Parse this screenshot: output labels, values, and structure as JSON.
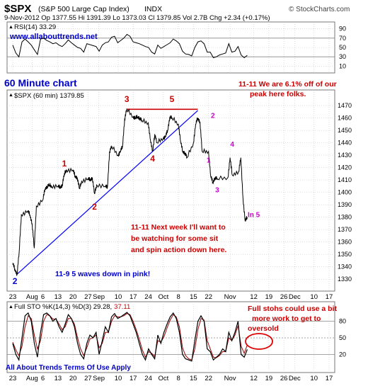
{
  "header": {
    "symbol": "$SPX",
    "name": "(S&P 500 Large Cap Index)",
    "exchange": "INDX",
    "source": "© StockCharts.com",
    "line2": "9-Nov-2012   Op 1377.55   Hi 1391.39   Lo 1373.03   Cl 1379.85   Vol 2.7B   Chg +2.34 (+0.17%)",
    "up_triangle": "▲"
  },
  "rsi_panel": {
    "label": "RSI(14) 33.29",
    "ticks": [
      "90",
      "70",
      "50",
      "30",
      "10"
    ],
    "watermark": "www.allabouttrends.net"
  },
  "price_panel": {
    "label": "$SPX (60 min) 1379.85",
    "outer_title": "60 Minute chart",
    "ticks": [
      "1470",
      "1460",
      "1450",
      "1440",
      "1430",
      "1420",
      "1410",
      "1400",
      "1390",
      "1380",
      "1370",
      "1360",
      "1350",
      "1340",
      "1330"
    ],
    "x_labels": [
      "23",
      "Aug",
      "6",
      "13",
      "20",
      "27",
      "Sep",
      "10",
      "17",
      "24",
      "Oct",
      "8",
      "15",
      "22",
      "Nov",
      "12",
      "19",
      "26",
      "Dec",
      "10",
      "17"
    ],
    "wave_labels": [
      {
        "text": "1",
        "color": "#cc0000"
      },
      {
        "text": "2",
        "color": "#cc0000"
      },
      {
        "text": "3",
        "color": "#cc0000"
      },
      {
        "text": "4",
        "color": "#cc0000"
      },
      {
        "text": "5",
        "color": "#cc0000"
      },
      {
        "text": "1",
        "color": "#cc00cc"
      },
      {
        "text": "2",
        "color": "#cc00cc"
      },
      {
        "text": "3",
        "color": "#cc00cc"
      },
      {
        "text": "4",
        "color": "#cc00cc"
      },
      {
        "text": "In 5",
        "color": "#cc00cc"
      },
      {
        "text": "2",
        "color": "#0000cc"
      }
    ],
    "annotations": [
      {
        "id": "peak",
        "color": "#cc0000",
        "lines": [
          "11-11 We are 6.1% off of our",
          "peak here folks."
        ]
      },
      {
        "id": "sit",
        "color": "#cc0000",
        "lines": [
          "11-11 Next week I'll want to",
          "be watching for some sit",
          "and spin action down here."
        ]
      },
      {
        "id": "waves",
        "color": "#0000cc",
        "lines": [
          "11-9 5 waves down in pink!"
        ]
      }
    ]
  },
  "sto_panel": {
    "label": "Full STO %K(14,3) %D(3) 29.28,",
    "label_value": "37.11",
    "ticks": [
      "80",
      "50",
      "20"
    ],
    "note": [
      "Full stohs could use a bit",
      "more work to get to",
      "oversold"
    ],
    "footer": "All About Trends Terms Of Use Apply"
  },
  "colors": {
    "price_line": "#111111",
    "trendline": "#0000ff",
    "wave_red": "#cc0000",
    "wave_pink": "#cc00cc",
    "stoch_k": "#000000",
    "stoch_d": "#990000",
    "rsi_line": "#000000",
    "grid": "#c8c8c8"
  },
  "chart_data": {
    "type": "line",
    "title": "$SPX (S&P 500 Large Cap Index) INDX",
    "xlabel": "",
    "ylabel": "",
    "ylim": [
      1325,
      1478
    ],
    "series": [
      {
        "name": "$SPX (60 min) 1379.85",
        "points": [
          [
            "Jul 23",
            1343
          ],
          [
            "Jul 24",
            1338
          ],
          [
            "Jul 25",
            1334
          ],
          [
            "Jul 26",
            1352
          ],
          [
            "Jul 27",
            1382
          ],
          [
            "Jul 30",
            1385
          ],
          [
            "Jul 31",
            1382
          ],
          [
            "Aug 1",
            1375
          ],
          [
            "Aug 2",
            1355
          ],
          [
            "Aug 3",
            1389
          ],
          [
            "Aug 6",
            1394
          ],
          [
            "Aug 7",
            1403
          ],
          [
            "Aug 8",
            1405
          ],
          [
            "Aug 9",
            1406
          ],
          [
            "Aug 10",
            1405
          ],
          [
            "Aug 13",
            1405
          ],
          [
            "Aug 14",
            1404
          ],
          [
            "Aug 15",
            1406
          ],
          [
            "Aug 16",
            1415
          ],
          [
            "Aug 17",
            1418
          ],
          [
            "Aug 20",
            1418
          ],
          [
            "Aug 21",
            1413
          ],
          [
            "Aug 22",
            1412
          ],
          [
            "Aug 23",
            1403
          ],
          [
            "Aug 24",
            1409
          ],
          [
            "Aug 27",
            1411
          ],
          [
            "Aug 28",
            1410
          ],
          [
            "Aug 29",
            1412
          ],
          [
            "Aug 30",
            1399
          ],
          [
            "Aug 31",
            1406
          ],
          [
            "Sep 4",
            1405
          ],
          [
            "Sep 5",
            1404
          ],
          [
            "Sep 6",
            1433
          ],
          [
            "Sep 7",
            1437
          ],
          [
            "Sep 10",
            1430
          ],
          [
            "Sep 11",
            1433
          ],
          [
            "Sep 12",
            1437
          ],
          [
            "Sep 13",
            1459
          ],
          [
            "Sep 14",
            1467
          ],
          [
            "Sep 17",
            1461
          ],
          [
            "Sep 18",
            1460
          ],
          [
            "Sep 19",
            1461
          ],
          [
            "Sep 20",
            1460
          ],
          [
            "Sep 21",
            1458
          ],
          [
            "Sep 24",
            1456
          ],
          [
            "Sep 25",
            1442
          ],
          [
            "Sep 26",
            1433
          ],
          [
            "Sep 27",
            1447
          ],
          [
            "Sep 28",
            1440
          ],
          [
            "Oct 1",
            1444
          ],
          [
            "Oct 2",
            1445
          ],
          [
            "Oct 3",
            1450
          ],
          [
            "Oct 4",
            1461
          ],
          [
            "Oct 5",
            1460
          ],
          [
            "Oct 8",
            1455
          ],
          [
            "Oct 9",
            1441
          ],
          [
            "Oct 10",
            1433
          ],
          [
            "Oct 11",
            1432
          ],
          [
            "Oct 12",
            1428
          ],
          [
            "Oct 15",
            1440
          ],
          [
            "Oct 16",
            1455
          ],
          [
            "Oct 17",
            1460
          ],
          [
            "Oct 18",
            1457
          ],
          [
            "Oct 19",
            1433
          ],
          [
            "Oct 22",
            1433
          ],
          [
            "Oct 23",
            1413
          ],
          [
            "Oct 24",
            1408
          ],
          [
            "Oct 25",
            1412
          ],
          [
            "Oct 26",
            1411
          ],
          [
            "Oct 31",
            1412
          ],
          [
            "Nov 1",
            1428
          ],
          [
            "Nov 2",
            1414
          ],
          [
            "Nov 5",
            1417
          ],
          [
            "Nov 6",
            1428
          ],
          [
            "Nov 7",
            1395
          ],
          [
            "Nov 8",
            1377
          ],
          [
            "Nov 9",
            1380
          ]
        ]
      }
    ],
    "trendline": [
      [
        "Jul 25",
        1334
      ],
      [
        "Oct 17",
        1466
      ]
    ],
    "peak_line": [
      [
        "Sep 14",
        1467
      ],
      [
        "Oct 17",
        1467
      ]
    ],
    "wave_points": [
      {
        "label": "1",
        "date": "Aug 16",
        "value": 1421
      },
      {
        "label": "2",
        "date": "Aug 30",
        "value": 1386
      },
      {
        "label": "3",
        "date": "Sep 14",
        "value": 1473
      },
      {
        "label": "4",
        "date": "Sep 26",
        "value": 1425
      },
      {
        "label": "5",
        "date": "Oct 5",
        "value": 1473
      },
      {
        "label": "1",
        "date": "Oct 22",
        "value": 1424
      },
      {
        "label": "2",
        "date": "Oct 24",
        "value": 1460
      },
      {
        "label": "3",
        "date": "Oct 26",
        "value": 1400
      },
      {
        "label": "4",
        "date": "Nov 2",
        "value": 1437
      },
      {
        "label": "In 5",
        "date": "Nov 12",
        "value": 1380
      },
      {
        "label": "2",
        "date": "Jul 24",
        "value": 1326
      }
    ],
    "rsi": {
      "name": "RSI(14) 33.29",
      "ylim": [
        0,
        100
      ],
      "values": [
        55,
        38,
        30,
        62,
        68,
        62,
        55,
        45,
        35,
        68,
        70,
        65,
        62,
        58,
        60,
        55,
        52,
        58,
        66,
        60,
        55,
        50,
        48,
        40,
        58,
        56,
        54,
        52,
        42,
        55,
        60,
        62,
        72,
        74,
        60,
        65,
        70,
        78,
        74,
        62,
        60,
        58,
        55,
        52,
        50,
        40,
        36,
        55,
        48,
        52,
        56,
        60,
        68,
        64,
        58,
        42,
        36,
        35,
        32,
        50,
        62,
        64,
        58,
        40,
        40,
        28,
        30,
        34,
        36,
        38,
        58,
        40,
        42,
        52,
        34,
        28,
        33
      ]
    },
    "stochastic": {
      "name": "Full STO %K(14,3) %D(3) 29.28, 37.11",
      "ylim": [
        0,
        100
      ],
      "k": [
        40,
        20,
        10,
        50,
        90,
        95,
        80,
        40,
        15,
        60,
        92,
        95,
        90,
        80,
        85,
        70,
        60,
        75,
        92,
        85,
        70,
        40,
        20,
        12,
        40,
        55,
        50,
        60,
        20,
        45,
        70,
        60,
        88,
        94,
        85,
        88,
        92,
        96,
        90,
        75,
        60,
        40,
        20,
        10,
        30,
        20,
        12,
        55,
        40,
        60,
        75,
        88,
        95,
        85,
        60,
        20,
        12,
        10,
        8,
        45,
        80,
        90,
        80,
        30,
        25,
        10,
        15,
        20,
        30,
        25,
        60,
        45,
        60,
        80,
        20,
        15,
        29
      ],
      "d": [
        42,
        28,
        18,
        35,
        70,
        90,
        85,
        55,
        30,
        45,
        80,
        92,
        90,
        84,
        84,
        75,
        65,
        70,
        85,
        85,
        75,
        50,
        30,
        18,
        32,
        48,
        50,
        55,
        32,
        40,
        60,
        60,
        80,
        90,
        88,
        88,
        90,
        94,
        92,
        80,
        65,
        48,
        28,
        15,
        25,
        22,
        16,
        45,
        42,
        52,
        68,
        82,
        92,
        88,
        70,
        32,
        18,
        12,
        10,
        30,
        65,
        85,
        82,
        45,
        30,
        15,
        14,
        18,
        25,
        25,
        50,
        45,
        55,
        72,
        35,
        22,
        37
      ]
    }
  }
}
